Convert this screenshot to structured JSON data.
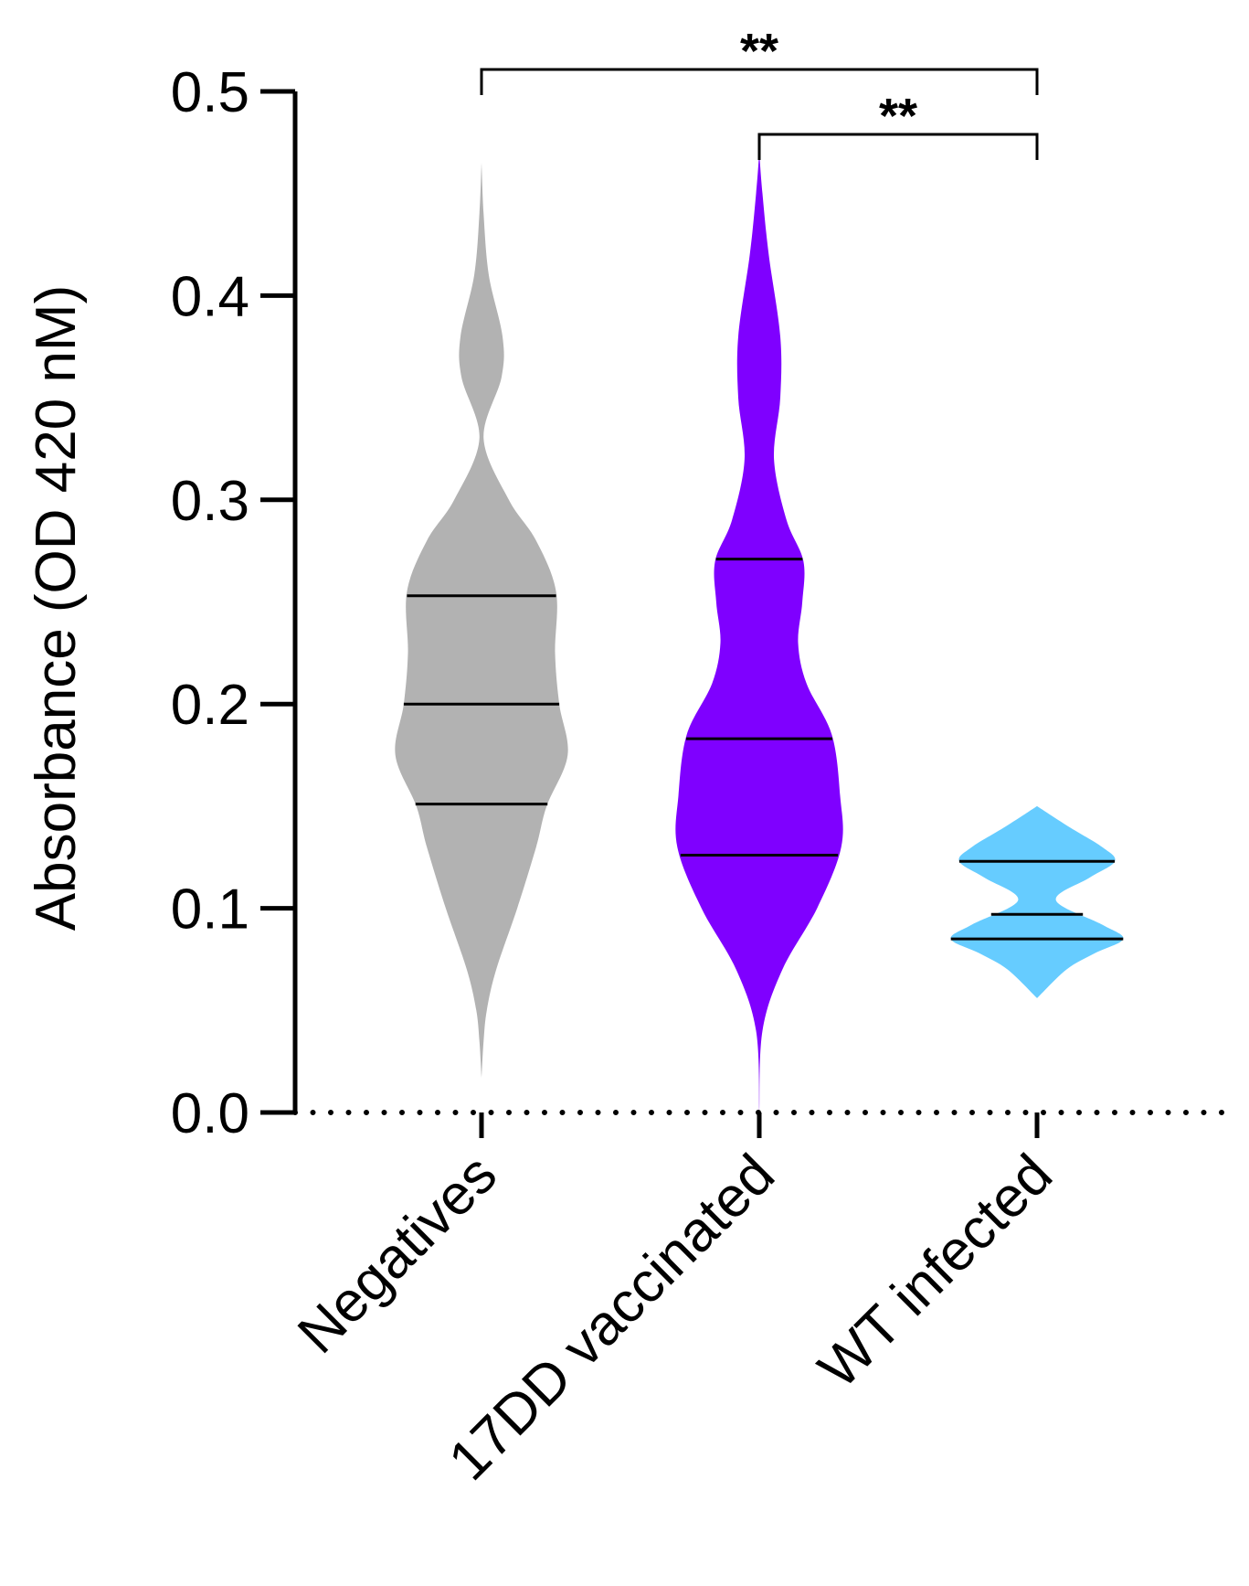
{
  "chart_data": {
    "type": "violin",
    "ylabel": "Absorbance (OD 420 nM)",
    "xlabel": "",
    "ylim": [
      0,
      0.5
    ],
    "yticks": [
      {
        "value": 0.0,
        "label": "0.0"
      },
      {
        "value": 0.1,
        "label": "0.1"
      },
      {
        "value": 0.2,
        "label": "0.2"
      },
      {
        "value": 0.3,
        "label": "0.3"
      },
      {
        "value": 0.4,
        "label": "0.4"
      },
      {
        "value": 0.5,
        "label": "0.5"
      }
    ],
    "baseline": {
      "value": 0.0,
      "style": "dotted"
    },
    "categories": [
      "Negatives",
      "17DD vaccinated",
      "WT infected"
    ],
    "series": [
      {
        "name": "Negatives",
        "color": "#b2b2b2",
        "min": 0.017,
        "max": 0.465,
        "quartiles": {
          "q1": 0.151,
          "median": 0.2,
          "q3": 0.253
        },
        "density_profile": [
          [
            0.017,
            0.0
          ],
          [
            0.035,
            0.02
          ],
          [
            0.05,
            0.05
          ],
          [
            0.07,
            0.14
          ],
          [
            0.1,
            0.34
          ],
          [
            0.13,
            0.52
          ],
          [
            0.15,
            0.62
          ],
          [
            0.175,
            0.82
          ],
          [
            0.2,
            0.74
          ],
          [
            0.225,
            0.7
          ],
          [
            0.255,
            0.71
          ],
          [
            0.28,
            0.52
          ],
          [
            0.3,
            0.26
          ],
          [
            0.33,
            0.02
          ],
          [
            0.36,
            0.19
          ],
          [
            0.38,
            0.2
          ],
          [
            0.41,
            0.07
          ],
          [
            0.44,
            0.02
          ],
          [
            0.465,
            0.0
          ]
        ]
      },
      {
        "name": "17DD vaccinated",
        "color": "#7f00ff",
        "min": 0.0,
        "max": 0.47,
        "quartiles": {
          "q1": 0.126,
          "median": 0.183,
          "q3": 0.271
        },
        "density_profile": [
          [
            0.0,
            0.0
          ],
          [
            0.04,
            0.03
          ],
          [
            0.07,
            0.22
          ],
          [
            0.1,
            0.55
          ],
          [
            0.13,
            0.78
          ],
          [
            0.155,
            0.77
          ],
          [
            0.185,
            0.69
          ],
          [
            0.21,
            0.45
          ],
          [
            0.23,
            0.37
          ],
          [
            0.25,
            0.41
          ],
          [
            0.27,
            0.42
          ],
          [
            0.29,
            0.26
          ],
          [
            0.32,
            0.14
          ],
          [
            0.35,
            0.2
          ],
          [
            0.38,
            0.2
          ],
          [
            0.42,
            0.09
          ],
          [
            0.45,
            0.03
          ],
          [
            0.47,
            0.0
          ]
        ]
      },
      {
        "name": "WT infected",
        "color": "#66ccff",
        "min": 0.056,
        "max": 0.15,
        "quartiles": {
          "q1": 0.085,
          "median": 0.097,
          "q3": 0.123
        },
        "density_profile": [
          [
            0.056,
            0.0
          ],
          [
            0.07,
            0.28
          ],
          [
            0.078,
            0.55
          ],
          [
            0.085,
            0.82
          ],
          [
            0.092,
            0.62
          ],
          [
            0.104,
            0.18
          ],
          [
            0.115,
            0.5
          ],
          [
            0.123,
            0.74
          ],
          [
            0.13,
            0.62
          ],
          [
            0.14,
            0.3
          ],
          [
            0.15,
            0.0
          ]
        ]
      }
    ],
    "significance": [
      {
        "from": "Negatives",
        "to": "WT infected",
        "label": "**",
        "level": 1
      },
      {
        "from": "17DD vaccinated",
        "to": "WT infected",
        "label": "**",
        "level": 0
      }
    ]
  }
}
